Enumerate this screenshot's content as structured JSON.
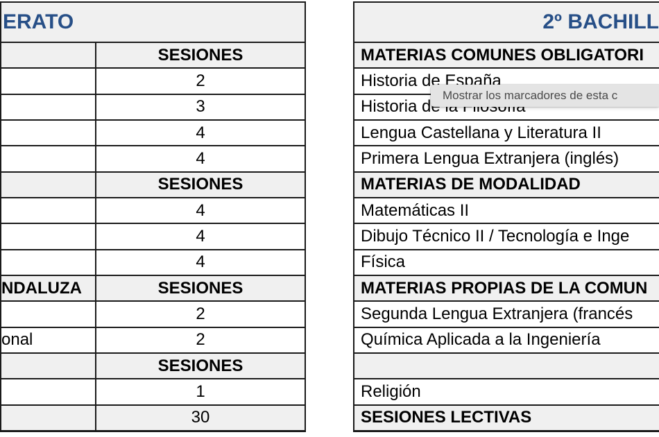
{
  "colors": {
    "title_blue": "#274f87",
    "header_gray": "#f0f0f0",
    "border_black": "#1a1a1a",
    "tooltip_bg": "#e4e4e4",
    "tooltip_text": "#4a4a4a"
  },
  "tooltip": {
    "text": "Mostrar los marcadores de esta c"
  },
  "left_table": {
    "title": "ERATO",
    "sessions_header_label": "SESIONES",
    "rows": [
      {
        "label": "",
        "value": "SESIONES"
      },
      {
        "label": "",
        "value": "2"
      },
      {
        "label": "",
        "value": "3"
      },
      {
        "label": "",
        "value": "4"
      },
      {
        "label": "",
        "value": "4"
      },
      {
        "label": "",
        "value": "SESIONES"
      },
      {
        "label": "",
        "value": "4"
      },
      {
        "label": "",
        "value": "4"
      },
      {
        "label": "",
        "value": "4"
      },
      {
        "label": "NDALUZA",
        "value": "SESIONES"
      },
      {
        "label": "",
        "value": "2"
      },
      {
        "label": "onal",
        "value": "2"
      },
      {
        "label": "",
        "value": "SESIONES"
      },
      {
        "label": "",
        "value": "1"
      },
      {
        "label": "",
        "value": "30"
      }
    ]
  },
  "right_table": {
    "title": "2º BACHILL",
    "rows": [
      {
        "label": "MATERIAS COMUNES OBLIGATORI"
      },
      {
        "label": "Historia de España"
      },
      {
        "label": "Historia de la Filosofía"
      },
      {
        "label": "Lengua Castellana y Literatura II"
      },
      {
        "label": "Primera Lengua Extranjera (inglés)"
      },
      {
        "label": "MATERIAS DE MODALIDAD"
      },
      {
        "label": "Matemáticas II"
      },
      {
        "label": "Dibujo Técnico II / Tecnología e Inge"
      },
      {
        "label": "Física"
      },
      {
        "label": "MATERIAS PROPIAS DE LA COMUN"
      },
      {
        "label": "Segunda Lengua Extranjera (francés"
      },
      {
        "label": "Química Aplicada a la Ingeniería"
      },
      {
        "label": ""
      },
      {
        "label": "Religión"
      },
      {
        "label": "SESIONES LECTIVAS"
      }
    ]
  }
}
